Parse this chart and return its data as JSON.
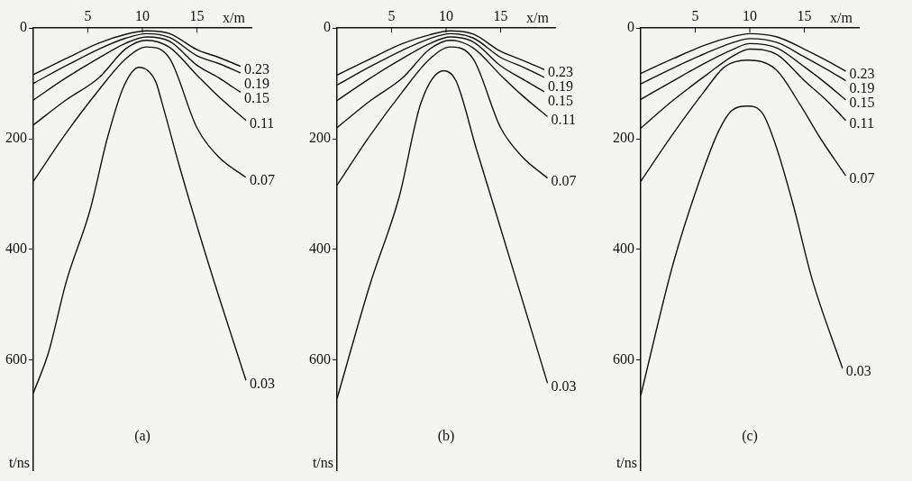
{
  "chart_data": [
    {
      "type": "line",
      "xlabel": "x/m",
      "ylabel": "t/ns",
      "xlim": [
        0,
        20
      ],
      "ylim": [
        800,
        0
      ],
      "xticks": [
        5,
        10,
        15
      ],
      "yticks": [
        0,
        200,
        400,
        600
      ],
      "grid": false,
      "legend": false,
      "marker": "none",
      "line_style": "solid",
      "annotations": [
        "(a)"
      ],
      "series": [
        {
          "name": "0.23",
          "color": "#111111",
          "x": [
            0,
            3,
            6,
            8.5,
            10.4,
            12.5,
            15,
            17,
            19
          ],
          "values": [
            84,
            55,
            27,
            11,
            5,
            10,
            39,
            53,
            69
          ]
        },
        {
          "name": "0.19",
          "color": "#111111",
          "x": [
            0,
            3,
            6,
            8.5,
            10.4,
            12.5,
            15,
            17,
            19
          ],
          "values": [
            100,
            68,
            38,
            18,
            10,
            17,
            50,
            64,
            81
          ]
        },
        {
          "name": "0.15",
          "color": "#111111",
          "x": [
            0,
            3,
            6,
            8.5,
            10.4,
            12.5,
            15,
            17,
            19
          ],
          "values": [
            130,
            90,
            54,
            27,
            16,
            24,
            67,
            90,
            116
          ]
        },
        {
          "name": "0.11",
          "color": "#111111",
          "x": [
            0,
            3,
            6,
            8.5,
            10.4,
            12.5,
            15,
            17,
            19.5
          ],
          "values": [
            175,
            130,
            90,
            37,
            22,
            35,
            85,
            124,
            167
          ]
        },
        {
          "name": "0.07",
          "color": "#111111",
          "x": [
            0,
            3,
            6,
            8.5,
            10.4,
            12.5,
            15,
            17,
            19.5
          ],
          "values": [
            277,
            190,
            112,
            55,
            34,
            55,
            180,
            233,
            270
          ]
        },
        {
          "name": "0.03",
          "color": "#111111",
          "x": [
            0,
            1.4,
            3,
            5.2,
            6.8,
            8.3,
            9.7,
            11.2,
            11.8,
            13.4,
            16,
            19.5
          ],
          "values": [
            660,
            586,
            460,
            329,
            198,
            105,
            71,
            96,
            135,
            250,
            422,
            637
          ]
        }
      ]
    },
    {
      "type": "line",
      "xlabel": "x/m",
      "ylabel": "t/ns",
      "xlim": [
        0,
        20
      ],
      "ylim": [
        800,
        0
      ],
      "xticks": [
        5,
        10,
        15
      ],
      "yticks": [
        0,
        200,
        400,
        600
      ],
      "grid": false,
      "legend": false,
      "marker": "none",
      "line_style": "solid",
      "annotations": [
        "(b)"
      ],
      "series": [
        {
          "name": "0.23",
          "color": "#111111",
          "x": [
            0,
            3,
            6,
            8.5,
            10.4,
            12.5,
            15,
            17,
            19
          ],
          "values": [
            85,
            56,
            28,
            12,
            5,
            11,
            42,
            58,
            75
          ]
        },
        {
          "name": "0.19",
          "color": "#111111",
          "x": [
            0,
            3,
            6,
            8.5,
            10.4,
            12.5,
            15,
            17,
            19
          ],
          "values": [
            103,
            70,
            40,
            19,
            10,
            18,
            53,
            70,
            89
          ]
        },
        {
          "name": "0.15",
          "color": "#111111",
          "x": [
            0,
            3,
            6,
            8.5,
            10.4,
            12.5,
            15,
            17,
            19
          ],
          "values": [
            131,
            91,
            55,
            28,
            16,
            25,
            68,
            92,
            115
          ]
        },
        {
          "name": "0.11",
          "color": "#111111",
          "x": [
            0,
            3,
            6,
            8.5,
            10.4,
            12.5,
            15,
            17,
            19.3
          ],
          "values": [
            180,
            132,
            90,
            38,
            22,
            36,
            85,
            122,
            160
          ]
        },
        {
          "name": "0.07",
          "color": "#111111",
          "x": [
            0,
            3,
            6,
            8.5,
            10.4,
            12.5,
            15,
            17,
            19.3
          ],
          "values": [
            284,
            195,
            115,
            56,
            34,
            56,
            180,
            233,
            271
          ]
        },
        {
          "name": "0.03",
          "color": "#111111",
          "x": [
            0,
            3,
            5.7,
            7.7,
            9.8,
            10.9,
            12.8,
            15,
            19.3
          ],
          "values": [
            670,
            465,
            305,
            135,
            77,
            95,
            220,
            362,
            642
          ]
        }
      ]
    },
    {
      "type": "line",
      "xlabel": "x/m",
      "ylabel": "t/ns",
      "xlim": [
        0,
        20
      ],
      "ylim": [
        800,
        0
      ],
      "xticks": [
        5,
        10,
        15
      ],
      "yticks": [
        0,
        200,
        400,
        600
      ],
      "grid": false,
      "legend": false,
      "marker": "none",
      "line_style": "solid",
      "annotations": [
        "(c)"
      ],
      "series": [
        {
          "name": "0.23",
          "color": "#111111",
          "x": [
            0,
            3,
            6,
            8.5,
            10,
            12.5,
            15,
            17,
            18.8
          ],
          "values": [
            82,
            55,
            30,
            15,
            10,
            16,
            38,
            58,
            78
          ]
        },
        {
          "name": "0.19",
          "color": "#111111",
          "x": [
            0,
            3,
            6,
            8.5,
            10,
            12.5,
            15,
            17,
            18.8
          ],
          "values": [
            101,
            72,
            45,
            26,
            19,
            26,
            52,
            74,
            95
          ]
        },
        {
          "name": "0.15",
          "color": "#111111",
          "x": [
            0,
            3,
            6,
            8.5,
            10,
            12.5,
            15,
            17,
            18.8
          ],
          "values": [
            129,
            95,
            62,
            38,
            28,
            36,
            70,
            100,
            130
          ]
        },
        {
          "name": "0.11",
          "color": "#111111",
          "x": [
            0,
            3,
            6,
            8.5,
            10,
            12.5,
            15,
            17,
            18.8
          ],
          "values": [
            181,
            130,
            85,
            50,
            38,
            48,
            95,
            130,
            167
          ]
        },
        {
          "name": "0.07",
          "color": "#111111",
          "x": [
            0,
            3,
            5.8,
            7.7,
            9.8,
            12.4,
            14.6,
            16.5,
            18.8
          ],
          "values": [
            277,
            190,
            115,
            70,
            58,
            75,
            138,
            200,
            267
          ]
        },
        {
          "name": "0.03",
          "color": "#111111",
          "x": [
            0,
            3,
            5.8,
            7.2,
            8.3,
            9.8,
            11.2,
            12.4,
            14,
            15.7,
            18.5
          ],
          "values": [
            664,
            424,
            253,
            184,
            150,
            141,
            155,
            213,
            321,
            453,
            615
          ]
        }
      ]
    }
  ]
}
